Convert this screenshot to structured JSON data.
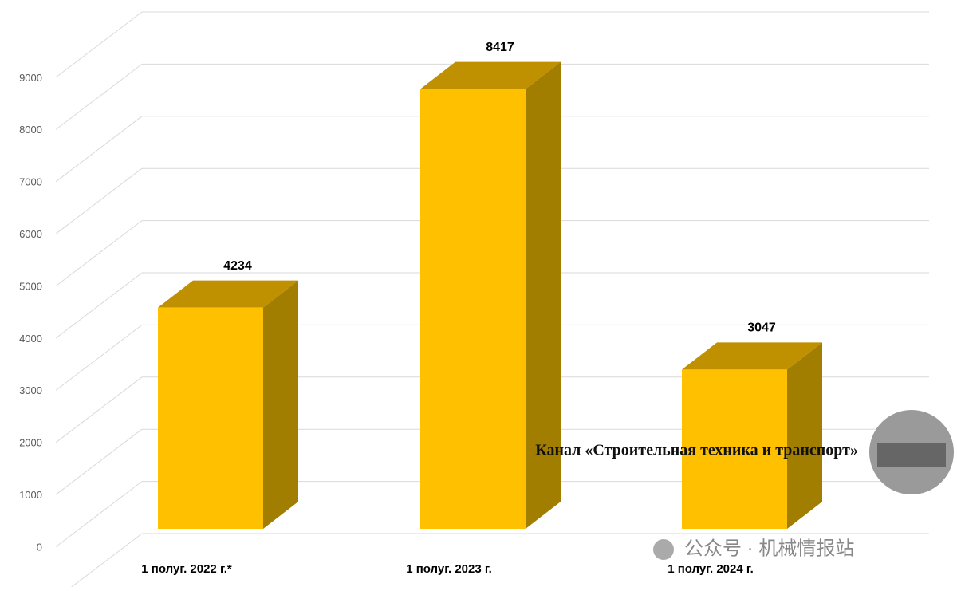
{
  "chart_data": {
    "type": "bar3d",
    "categories": [
      "1 полуг. 2022 г.*",
      "1 полуг. 2023 г.",
      "1 полуг. 2024 г."
    ],
    "values": [
      4234,
      8417,
      3047
    ],
    "colors": {
      "front": "#FFC000",
      "top": "#BF9000",
      "side": "#A17D00"
    },
    "ylim": [
      0,
      10000
    ],
    "yticks": [
      0,
      1000,
      2000,
      3000,
      4000,
      5000,
      6000,
      7000,
      8000,
      9000
    ],
    "grid": true
  },
  "watermark": {
    "channel": "Канал «Строительная техника и транспорт»",
    "wechat": "公众号 · 机械情报站"
  }
}
